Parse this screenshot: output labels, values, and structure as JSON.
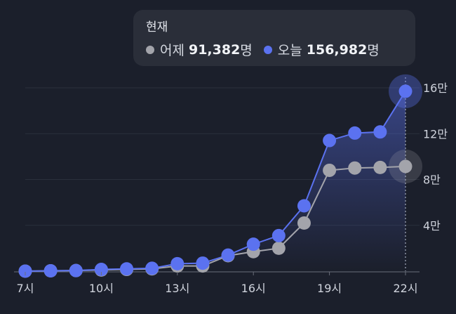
{
  "tooltip": {
    "title": "현재",
    "yesterday_label": "어제",
    "yesterday_value": "91,382",
    "today_label": "오늘",
    "today_value": "156,982",
    "unit": "명"
  },
  "colors": {
    "background": "#1b1f2b",
    "today": "#5b72f0",
    "yesterday": "#a3a4ab",
    "grid": "#2b303c"
  },
  "chart_data": {
    "type": "line",
    "x_labels": [
      "7시",
      "10시",
      "13시",
      "16시",
      "19시",
      "22시"
    ],
    "x_label_hours": [
      7,
      10,
      13,
      16,
      19,
      22
    ],
    "y_tick_labels": [
      "4만",
      "8만",
      "12만",
      "16만"
    ],
    "y_tick_values": [
      40000,
      80000,
      120000,
      160000
    ],
    "ylim": [
      0,
      160000
    ],
    "xlim": [
      7,
      22
    ],
    "grid": true,
    "current_marker_hour": 22,
    "series": [
      {
        "name": "어제",
        "color": "#a3a4ab",
        "x": [
          7,
          8,
          9,
          10,
          11,
          12,
          13,
          14,
          15,
          16,
          17,
          18,
          19,
          20,
          21,
          22
        ],
        "values": [
          0,
          300,
          500,
          1000,
          1500,
          2000,
          4500,
          4500,
          13500,
          17000,
          20000,
          42000,
          88000,
          90000,
          90500,
          91382
        ]
      },
      {
        "name": "오늘",
        "color": "#5b72f0",
        "x": [
          7,
          8,
          9,
          10,
          11,
          12,
          13,
          14,
          15,
          16,
          17,
          18,
          19,
          20,
          21,
          22
        ],
        "values": [
          0,
          300,
          500,
          1500,
          2000,
          2500,
          6500,
          7000,
          14000,
          23500,
          31000,
          57000,
          114000,
          120500,
          121500,
          156982
        ]
      }
    ]
  }
}
